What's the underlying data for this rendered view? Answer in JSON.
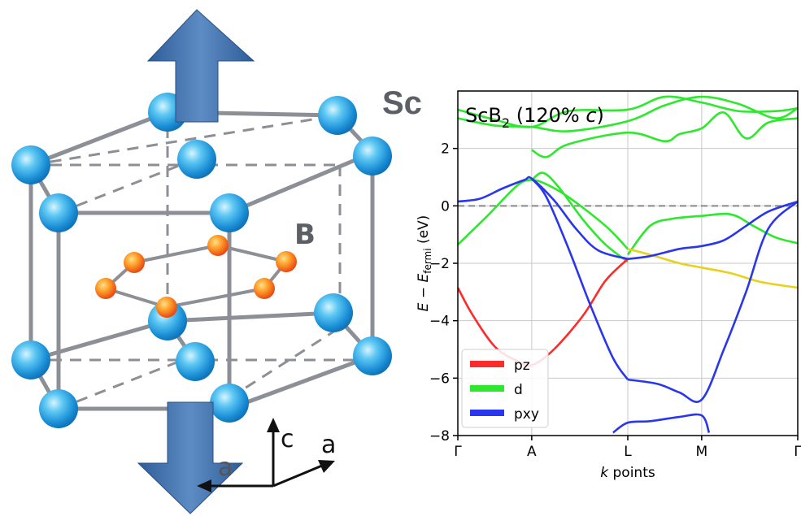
{
  "structure": {
    "sc_label": "Sc",
    "b_label": "B",
    "axis_c": "c",
    "axis_a1": "a",
    "axis_a2": "a",
    "colors": {
      "sc_atom": "#3ab6ee",
      "b_atom": "#ff7a2a",
      "arrow": "#3d6aa6",
      "bond": "#8c8f96"
    }
  },
  "chart_data": {
    "type": "line",
    "title": "ScB",
    "title_sub": "2",
    "title_rest": " (120% ",
    "title_c": "c",
    "title_close": ")",
    "xlabel_italic": "k",
    "xlabel_rest": " points",
    "ylabel": "E − E",
    "ylabel_sub": "fermi",
    "ylabel_unit": " (eV)",
    "x_ticks": [
      "Γ",
      "A",
      "L",
      "M",
      "Γ"
    ],
    "x_tick_pos": [
      0,
      1,
      2.3,
      3.3,
      4.6
    ],
    "ylim": [
      -8,
      4
    ],
    "y_ticks": [
      2,
      0,
      -2,
      -4,
      -6,
      -8
    ],
    "fermi_line": 0,
    "grid": true,
    "legend": {
      "placement": "bottom-left",
      "entries": [
        {
          "name": "pz",
          "color": "#ff2a2a"
        },
        {
          "name": "d",
          "color": "#2de82d"
        },
        {
          "name": "pxy",
          "color": "#2a36ee"
        }
      ]
    },
    "series": [
      {
        "color": "#2de82d",
        "x": [
          0,
          0.5,
          1,
          1.5,
          2.3,
          2.8,
          3.3,
          3.8,
          4.3,
          4.6
        ],
        "y": [
          3.35,
          3.0,
          2.75,
          3.3,
          3.35,
          3.8,
          3.6,
          3.3,
          3.3,
          3.4
        ]
      },
      {
        "color": "#2de82d",
        "x": [
          0,
          0.5,
          1,
          1.5,
          2.3,
          2.8,
          3.3,
          3.8,
          4.3,
          4.6
        ],
        "y": [
          3.05,
          2.8,
          2.75,
          2.6,
          2.95,
          3.5,
          3.8,
          3.55,
          3.05,
          3.4
        ]
      },
      {
        "color": "#2de82d",
        "x": [
          1,
          1.2,
          1.5,
          2.3,
          2.8,
          3.0,
          3.3,
          3.6,
          3.9,
          4.2,
          4.6
        ],
        "y": [
          1.95,
          1.7,
          2.15,
          2.55,
          2.25,
          2.5,
          2.7,
          3.25,
          2.35,
          2.9,
          3.05
        ]
      },
      {
        "color": "#2de82d",
        "x": [
          0,
          0.4,
          0.8,
          1,
          1.2,
          1.5,
          2.0,
          2.3
        ],
        "y": [
          -1.35,
          -0.35,
          0.7,
          0.9,
          0.75,
          0.3,
          -0.7,
          -1.5
        ]
      },
      {
        "color": "#2de82d",
        "x": [
          1,
          1.15,
          1.35,
          1.7,
          2.0,
          2.3
        ],
        "y": [
          0.9,
          1.15,
          0.7,
          -0.5,
          -1.35,
          -1.95
        ]
      },
      {
        "color": "#2de82d",
        "x": [
          2.3,
          2.6,
          2.9,
          3.3,
          3.7,
          4.0,
          4.3,
          4.6
        ],
        "y": [
          -1.7,
          -0.7,
          -0.45,
          -0.35,
          -0.3,
          -0.7,
          -1.1,
          -1.3
        ]
      },
      {
        "color": "#ff2a2a",
        "x": [
          0,
          0.2,
          0.5,
          0.8,
          1,
          1.3,
          1.7,
          2.0,
          2.3
        ],
        "y": [
          -2.85,
          -3.8,
          -4.9,
          -5.4,
          -5.55,
          -5.0,
          -3.8,
          -2.6,
          -1.85
        ]
      },
      {
        "color": "#e6d21c",
        "x": [
          2.3,
          2.6,
          3.0,
          3.3,
          3.7,
          4.1,
          4.6
        ],
        "y": [
          -1.5,
          -1.7,
          -2.0,
          -2.15,
          -2.35,
          -2.65,
          -2.85
        ]
      },
      {
        "color": "#2a36ee",
        "x": [
          0,
          0.3,
          0.6,
          0.9,
          1,
          1.3,
          1.6,
          1.9,
          2.3
        ],
        "y": [
          0.15,
          0.25,
          0.6,
          0.9,
          0.95,
          0.2,
          -0.8,
          -1.55,
          -1.85
        ]
      },
      {
        "color": "#2a36ee",
        "x": [
          1,
          1.2,
          1.5,
          1.8,
          2.1,
          2.3
        ],
        "y": [
          0.95,
          0.3,
          -1.5,
          -3.5,
          -5.3,
          -6.05
        ]
      },
      {
        "color": "#2a36ee",
        "x": [
          2.3,
          2.7,
          3.0,
          3.3,
          3.6,
          3.9,
          4.2,
          4.6
        ],
        "y": [
          -6.05,
          -6.2,
          -6.5,
          -6.75,
          -5.0,
          -3.0,
          -0.8,
          0.15
        ]
      },
      {
        "color": "#2a36ee",
        "x": [
          2.3,
          2.6,
          3.0,
          3.3,
          3.6,
          3.9,
          4.2,
          4.6
        ],
        "y": [
          -1.85,
          -1.75,
          -1.5,
          -1.4,
          -1.2,
          -0.7,
          -0.2,
          0.15
        ]
      },
      {
        "color": "#2a36ee",
        "x": [
          2.1,
          2.3,
          2.6,
          3.0,
          3.3,
          3.4
        ],
        "y": [
          -7.9,
          -7.55,
          -7.5,
          -7.35,
          -7.3,
          -7.9
        ]
      }
    ]
  }
}
